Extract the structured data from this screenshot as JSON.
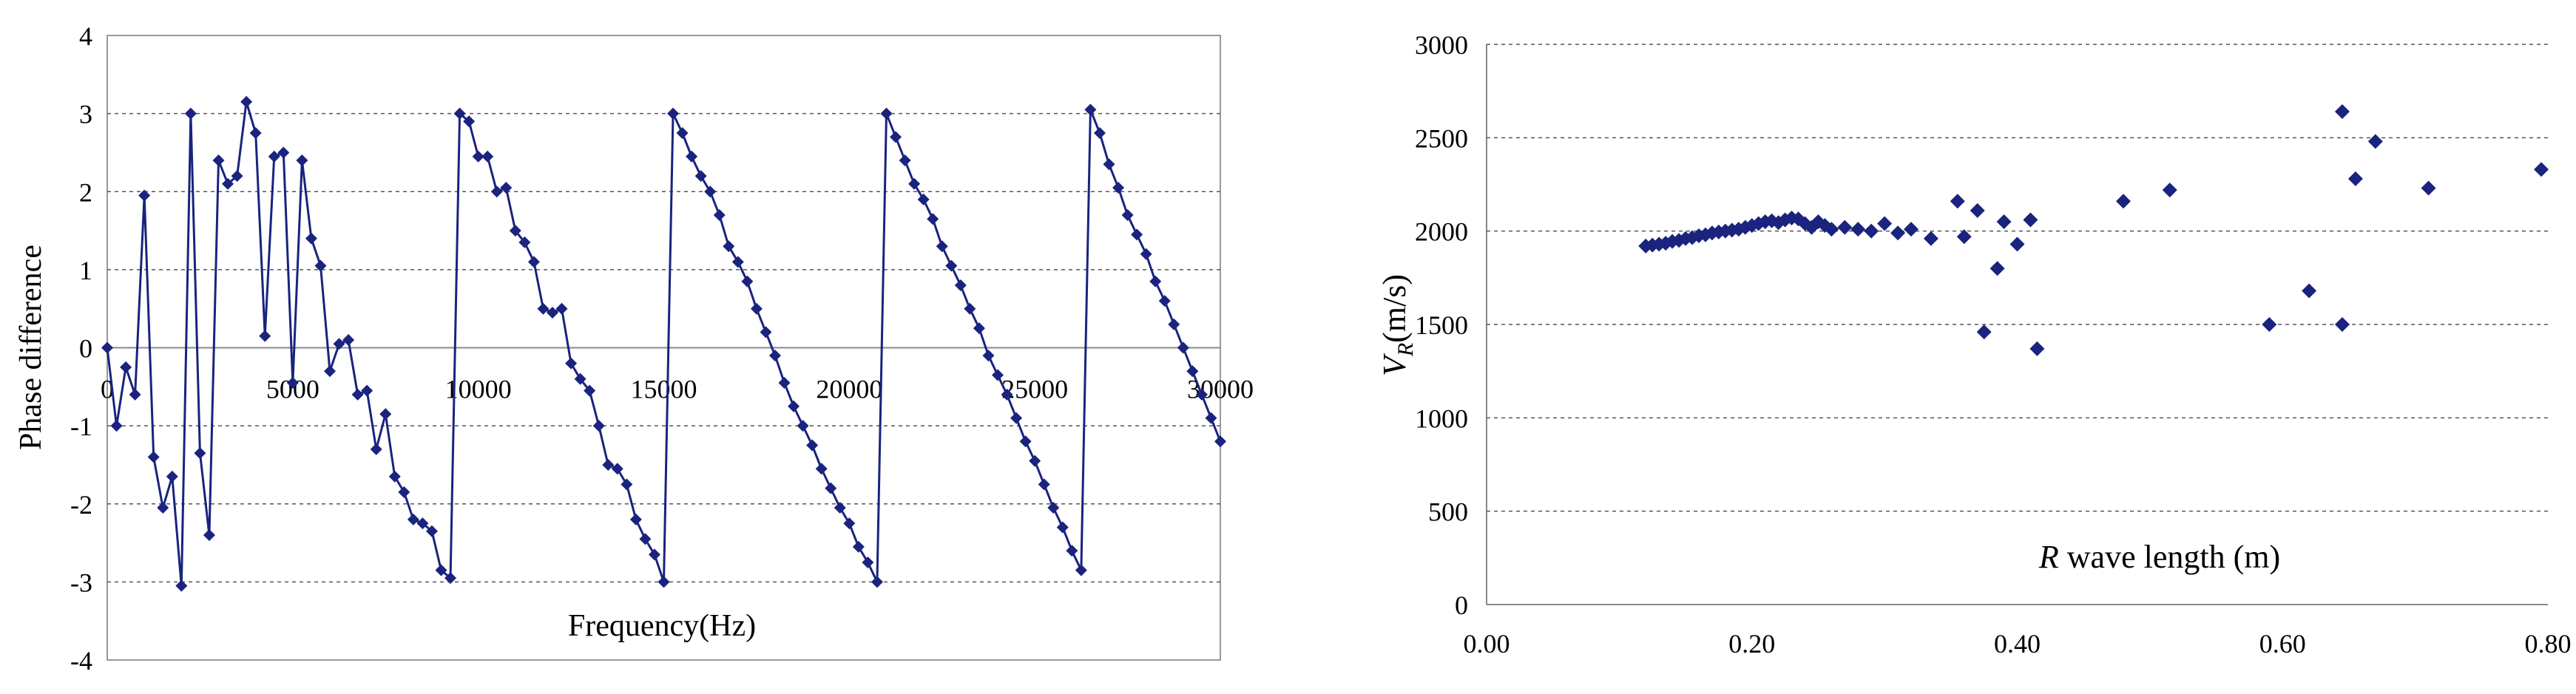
{
  "chart_data": [
    {
      "type": "line",
      "title": "",
      "xlabel": "Frequency(Hz)",
      "ylabel": "Phase difference",
      "xlim": [
        0,
        30000
      ],
      "ylim": [
        -4,
        4
      ],
      "x_ticks": [
        "0",
        "5000",
        "10000",
        "15000",
        "20000",
        "25000",
        "30000"
      ],
      "y_ticks": [
        "-4",
        "-3",
        "-2",
        "-1",
        "0",
        "1",
        "2",
        "3",
        "4"
      ],
      "grid": "horizontal dashed",
      "series_color": "#1a237e",
      "series": [
        {
          "x": [
            0,
            250,
            500,
            750,
            1000,
            1250,
            1500,
            1750,
            2000,
            2250,
            2500,
            2750,
            3000,
            3250,
            3500,
            3750,
            4000,
            4250,
            4500,
            4750,
            5000,
            5250,
            5500,
            5750,
            6000,
            6250,
            6500,
            6750,
            7000,
            7250,
            7500,
            7750,
            8000,
            8250,
            8500,
            8750,
            9000,
            9250,
            9500,
            9750,
            10000,
            10250,
            10500,
            10750,
            11000,
            11250,
            11500,
            11750,
            12000,
            12250,
            12500,
            12750,
            13000,
            13250,
            13500,
            13750,
            14000,
            14250,
            14500,
            14750,
            15000,
            15250,
            15500,
            15750,
            16000,
            16250,
            16500,
            16750,
            17000,
            17250,
            17500,
            17750,
            18000,
            18250,
            18500,
            18750,
            19000,
            19250,
            19500,
            19750,
            20000,
            20250,
            20500,
            20750,
            21000,
            21250,
            21500,
            21750,
            22000,
            22250,
            22500,
            22750,
            23000,
            23250,
            23500,
            23750,
            24000,
            24250,
            24500,
            24750,
            25000,
            25250,
            25500,
            25750,
            26000,
            26250,
            26500,
            26750,
            27000,
            27250,
            27500,
            27750,
            28000,
            28250,
            28500,
            28750,
            29000,
            29250,
            29500,
            29750,
            30000
          ],
          "y": [
            0,
            -1,
            -0.25,
            -0.6,
            1.95,
            -1.4,
            -2.05,
            -1.65,
            -3.05,
            3,
            -1.35,
            -2.4,
            2.4,
            2.1,
            2.2,
            3.15,
            2.75,
            0.15,
            2.45,
            2.5,
            -0.45,
            2.4,
            1.4,
            1.05,
            -0.3,
            0.05,
            0.1,
            -0.6,
            -0.55,
            -1.3,
            -0.85,
            -1.65,
            -1.85,
            -2.2,
            -2.25,
            -2.35,
            -2.85,
            -2.95,
            3,
            2.9,
            2.45,
            2.45,
            2.0,
            2.05,
            1.5,
            1.35,
            1.1,
            0.5,
            0.45,
            0.5,
            -0.2,
            -0.4,
            -0.55,
            -1.0,
            -1.5,
            -1.55,
            -1.75,
            -2.2,
            -2.45,
            -2.65,
            -3.0,
            3,
            2.75,
            2.45,
            2.2,
            2.0,
            1.7,
            1.3,
            1.1,
            0.85,
            0.5,
            0.2,
            -0.1,
            -0.45,
            -0.75,
            -1.0,
            -1.25,
            -1.55,
            -1.8,
            -2.05,
            -2.25,
            -2.55,
            -2.75,
            -3.0,
            3,
            2.7,
            2.4,
            2.1,
            1.9,
            1.65,
            1.3,
            1.05,
            0.8,
            0.5,
            0.25,
            -0.1,
            -0.35,
            -0.6,
            -0.9,
            -1.2,
            -1.45,
            -1.75,
            -2.05,
            -2.3,
            -2.6,
            -2.85,
            3.05,
            2.75,
            2.35,
            2.05,
            1.7,
            1.45,
            1.2,
            0.85,
            0.6,
            0.3,
            0.0,
            -0.3,
            -0.6,
            -0.9,
            -1.2
          ]
        }
      ]
    },
    {
      "type": "scatter",
      "title": "",
      "xlabel_italic": "R",
      "xlabel_rest": " wave length (m)",
      "ylabel_var": "V",
      "ylabel_sub": "R",
      "ylabel_unit": "(m/s)",
      "xlim": [
        0,
        0.8
      ],
      "ylim": [
        0,
        3000
      ],
      "x_ticks": [
        "0.00",
        "0.20",
        "0.40",
        "0.60",
        "0.80"
      ],
      "y_ticks": [
        "0",
        "500",
        "1000",
        "1500",
        "2000",
        "2500",
        "3000"
      ],
      "grid": "horizontal dashed",
      "marker": "diamond",
      "series_color": "#1a237e",
      "series": [
        {
          "points": [
            [
              0.12,
              1920
            ],
            [
              0.125,
              1925
            ],
            [
              0.13,
              1930
            ],
            [
              0.135,
              1935
            ],
            [
              0.14,
              1945
            ],
            [
              0.145,
              1950
            ],
            [
              0.15,
              1960
            ],
            [
              0.155,
              1965
            ],
            [
              0.16,
              1975
            ],
            [
              0.165,
              1980
            ],
            [
              0.17,
              1990
            ],
            [
              0.175,
              1995
            ],
            [
              0.18,
              2000
            ],
            [
              0.185,
              2005
            ],
            [
              0.19,
              2010
            ],
            [
              0.195,
              2020
            ],
            [
              0.2,
              2030
            ],
            [
              0.205,
              2040
            ],
            [
              0.21,
              2050
            ],
            [
              0.215,
              2055
            ],
            [
              0.22,
              2045
            ],
            [
              0.225,
              2060
            ],
            [
              0.23,
              2070
            ],
            [
              0.235,
              2065
            ],
            [
              0.24,
              2040
            ],
            [
              0.245,
              2020
            ],
            [
              0.25,
              2050
            ],
            [
              0.255,
              2030
            ],
            [
              0.26,
              2010
            ],
            [
              0.27,
              2020
            ],
            [
              0.28,
              2010
            ],
            [
              0.29,
              2000
            ],
            [
              0.3,
              2040
            ],
            [
              0.31,
              1990
            ],
            [
              0.32,
              2010
            ],
            [
              0.335,
              1960
            ],
            [
              0.355,
              2160
            ],
            [
              0.36,
              1970
            ],
            [
              0.37,
              2110
            ],
            [
              0.375,
              1460
            ],
            [
              0.385,
              1800
            ],
            [
              0.39,
              2050
            ],
            [
              0.4,
              1930
            ],
            [
              0.41,
              2060
            ],
            [
              0.415,
              1370
            ],
            [
              0.48,
              2160
            ],
            [
              0.515,
              2220
            ],
            [
              0.59,
              1500
            ],
            [
              0.62,
              1680
            ],
            [
              0.645,
              1500
            ],
            [
              0.645,
              2640
            ],
            [
              0.655,
              2280
            ],
            [
              0.67,
              2480
            ],
            [
              0.71,
              2230
            ],
            [
              0.795,
              2330
            ]
          ]
        }
      ]
    }
  ]
}
